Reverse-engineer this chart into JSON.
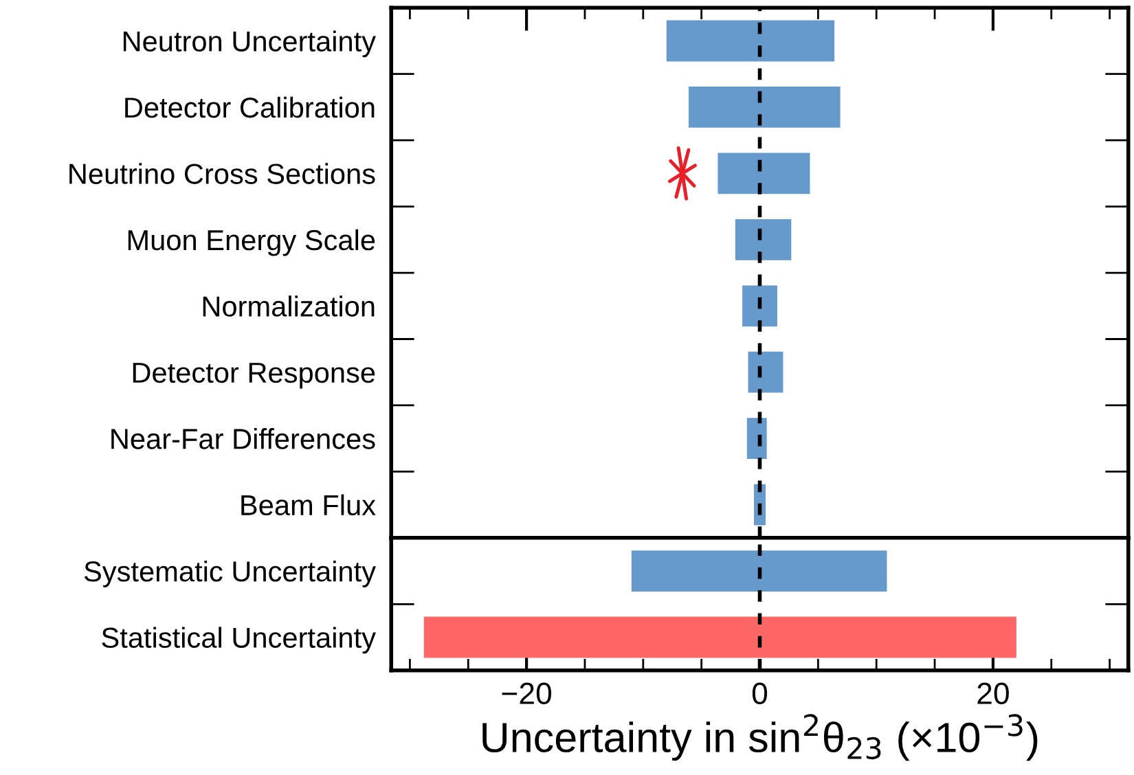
{
  "chart_data": [
    {
      "type": "bar",
      "orientation": "horizontal",
      "categories": [
        "Neutron Uncertainty",
        "Detector Calibration",
        "Neutrino Cross Sections",
        "Muon Energy Scale",
        "Normalization",
        "Detector Response",
        "Near-Far Differences",
        "Beam Flux"
      ],
      "base": [
        -8.0,
        -6.1,
        -3.6,
        -2.1,
        -1.5,
        -1.0,
        -1.1,
        -0.5
      ],
      "values": [
        14.4,
        13.0,
        7.9,
        4.8,
        3.0,
        3.0,
        1.7,
        1.0
      ],
      "color": "#6699cc",
      "xlim": [
        -31.6,
        31.6
      ],
      "xticks": [
        -20,
        0,
        20
      ],
      "tick_labels": "y",
      "ref_lines": [
        {
          "axis": "x",
          "value": 0,
          "color": "#000000",
          "line_style": "dashed"
        }
      ]
    },
    {
      "type": "bar",
      "orientation": "horizontal",
      "categories": [
        "Systematic Uncertainty",
        "Statistical Uncertainty"
      ],
      "base": [
        -11.0,
        -28.8
      ],
      "values": [
        21.9,
        50.8
      ],
      "colors": [
        "#6699cc",
        "#ff6666"
      ],
      "xlim": [
        -31.6,
        31.6
      ],
      "xticks": [
        {
          "value": -20,
          "label": "−20"
        },
        0,
        20
      ],
      "xlabel": "Uncertainty in sin$^{2}$θ$_{23}$ (×10$^{−3}$)",
      "ref_lines": [
        {
          "axis": "x",
          "value": 0,
          "color": "#000000",
          "line_style": "dashed"
        }
      ]
    }
  ]
}
